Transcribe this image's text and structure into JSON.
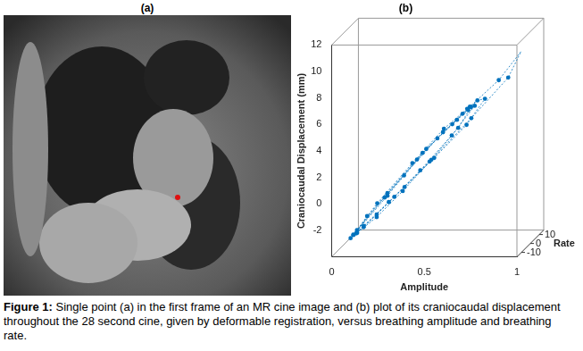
{
  "image_panel": {
    "title": "(a)"
  },
  "chart_data": {
    "type": "scatter",
    "title": "(b)",
    "x_label": "Amplitude",
    "y_label": "Craniocaudal Displacement (mm)",
    "z_label": "Rate",
    "x": [
      0.05,
      0.18,
      0.35,
      0.5,
      0.62,
      0.68,
      0.63,
      0.5,
      0.35,
      0.2,
      0.08,
      0.04,
      0.2,
      0.38,
      0.55,
      0.7,
      0.76,
      0.68,
      0.52,
      0.36,
      0.2,
      0.07,
      0.1,
      0.28,
      0.46,
      0.65,
      0.82,
      0.95,
      0.9,
      0.72,
      0.5,
      0.3,
      0.12,
      0.03,
      0.15,
      0.33,
      0.5,
      0.64,
      0.7,
      0.6,
      0.44,
      0.27,
      0.12,
      0.05,
      0.2,
      0.4,
      0.58,
      0.66
    ],
    "values": [
      -3.2,
      -1.0,
      1.8,
      4.0,
      5.6,
      6.3,
      5.0,
      2.8,
      0.5,
      -1.6,
      -3.0,
      -3.4,
      -0.6,
      2.3,
      4.6,
      6.6,
      7.0,
      5.3,
      3.0,
      0.8,
      -1.4,
      -3.1,
      -2.2,
      0.6,
      3.4,
      6.0,
      8.2,
      10.5,
      8.8,
      6.0,
      2.8,
      0.0,
      -2.4,
      -3.6,
      -1.3,
      1.6,
      4.2,
      5.9,
      6.4,
      4.5,
      2.0,
      -0.4,
      -2.5,
      -3.3,
      -0.8,
      2.6,
      5.0,
      6.0
    ],
    "z": [
      3,
      7,
      8,
      6,
      3,
      0,
      -4,
      -7,
      -8,
      -6,
      -3,
      1,
      6,
      8,
      6,
      3,
      -1,
      -5,
      -8,
      -8,
      -6,
      -2,
      4,
      8,
      8,
      5,
      2,
      0,
      -4,
      -8,
      -9,
      -7,
      -4,
      0,
      5,
      7,
      7,
      4,
      0,
      -5,
      -7,
      -7,
      -4,
      -1,
      6,
      8,
      5,
      1
    ],
    "xlim": [
      0,
      1
    ],
    "xticks": [
      0,
      0.5,
      1
    ],
    "ylim": [
      -4,
      12
    ],
    "yticks": [
      -2,
      0,
      2,
      4,
      6,
      8,
      10,
      12
    ],
    "zlim": [
      -15,
      15
    ],
    "zticks": [
      -10,
      0,
      10
    ],
    "color": "#0072bd",
    "marker": "circle",
    "line_style": "dotted",
    "grid": false
  },
  "caption": {
    "label": "Figure 1:",
    "text": "Single point (a) in the first frame of an MR cine image and (b) plot of its craniocaudal displacement throughout the 28 second cine, given by deformable registration, versus breathing amplitude and breathing rate."
  }
}
